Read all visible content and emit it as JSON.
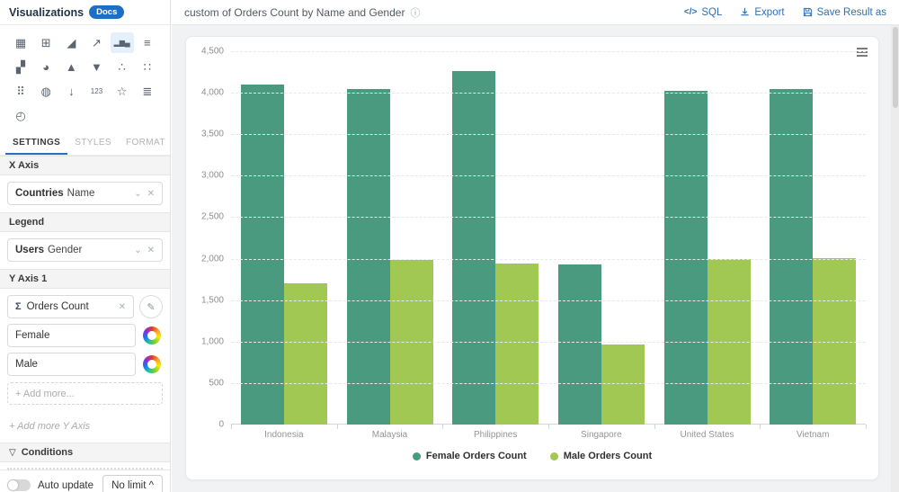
{
  "sidebar": {
    "title": "Visualizations",
    "docs_badge": "Docs",
    "viz_icons": [
      {
        "name": "table-icon",
        "glyph": "▦"
      },
      {
        "name": "pivot-table-icon",
        "glyph": "⊞"
      },
      {
        "name": "area-chart-icon",
        "glyph": "◢"
      },
      {
        "name": "line-chart-icon",
        "glyph": "↗"
      },
      {
        "name": "column-chart-icon",
        "glyph": "▂▆▄",
        "selected": true,
        "small": true
      },
      {
        "name": "horizontal-bar-chart-icon",
        "glyph": "≡"
      },
      {
        "name": "combo-chart-icon",
        "glyph": "▞"
      },
      {
        "name": "pie-chart-icon",
        "glyph": "◕"
      },
      {
        "name": "pyramid-chart-icon",
        "glyph": "▲"
      },
      {
        "name": "funnel-chart-icon",
        "glyph": "▼"
      },
      {
        "name": "scatter-plot-icon",
        "glyph": "∴"
      },
      {
        "name": "bubble-chart-icon",
        "glyph": "∷"
      },
      {
        "name": "heatmap-icon",
        "glyph": "⠿"
      },
      {
        "name": "map-chart-icon",
        "glyph": "◍"
      },
      {
        "name": "ranking-icon",
        "glyph": "↓"
      },
      {
        "name": "number-kpi-icon",
        "glyph": "123",
        "small": true
      },
      {
        "name": "radar-chart-icon",
        "glyph": "☆"
      },
      {
        "name": "parallel-chart-icon",
        "glyph": "≣"
      },
      {
        "name": "gauge-chart-icon",
        "glyph": "◴"
      }
    ],
    "tabs": [
      {
        "label": "SETTINGS",
        "active": true
      },
      {
        "label": "STYLES",
        "active": false
      },
      {
        "label": "FORMAT",
        "active": false
      }
    ],
    "x_axis": {
      "label": "X Axis",
      "field_primary": "Countries",
      "field_secondary": "Name"
    },
    "legend": {
      "label": "Legend",
      "field_primary": "Users",
      "field_secondary": "Gender"
    },
    "y_axis": {
      "label": "Y Axis 1",
      "measure": "Orders Count",
      "series_fields": [
        "Female",
        "Male"
      ],
      "add_more": "+ Add more...",
      "add_more_y": "+ Add more Y Axis"
    },
    "conditions_label": "Conditions",
    "footer": {
      "auto_update": "Auto update",
      "limit": "No limit"
    }
  },
  "header": {
    "title": "custom of Orders Count by Name and Gender",
    "actions": [
      {
        "name": "sql",
        "label": "SQL"
      },
      {
        "name": "export",
        "label": "Export"
      },
      {
        "name": "save-result-as",
        "label": "Save Result as"
      }
    ]
  },
  "chart_data": {
    "type": "bar",
    "categories": [
      "Indonesia",
      "Malaysia",
      "Philippines",
      "Singapore",
      "United States",
      "Vietnam"
    ],
    "series": [
      {
        "name": "Female Orders Count",
        "color": "#4a9a80",
        "values": [
          4100,
          4040,
          4260,
          1930,
          4020,
          4050
        ]
      },
      {
        "name": "Male Orders Count",
        "color": "#a0c853",
        "values": [
          1700,
          1980,
          1940,
          970,
          2000,
          2010
        ]
      }
    ],
    "ylim": [
      0,
      4500
    ],
    "ytick_step": 500,
    "grid": "horizontal-dashed",
    "legend_position": "bottom"
  }
}
